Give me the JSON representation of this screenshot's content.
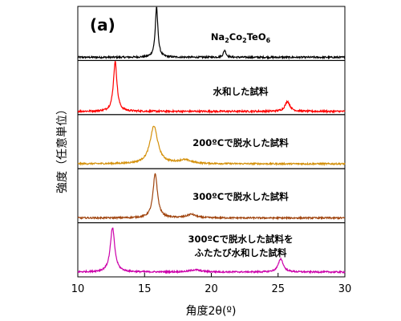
{
  "chart_data": {
    "type": "line",
    "panel_label": "(a)",
    "xlabel": "角度2θ(º)",
    "ylabel": "強度（任意単位）",
    "xlim": [
      10,
      30
    ],
    "x_ticks": [
      10,
      15,
      20,
      25,
      30
    ],
    "grid": false,
    "series": [
      {
        "name": "Na2Co2TeO6",
        "label_parts": [
          {
            "text": "Na",
            "sub": false
          },
          {
            "text": "2",
            "sub": true
          },
          {
            "text": "Co",
            "sub": false
          },
          {
            "text": "2",
            "sub": true
          },
          {
            "text": "TeO",
            "sub": false
          },
          {
            "text": "6",
            "sub": true
          }
        ],
        "color": "#000000",
        "peaks": [
          {
            "x": 15.9,
            "height": 1.0,
            "width": 0.12
          },
          {
            "x": 21.0,
            "height": 0.14,
            "width": 0.12
          }
        ]
      },
      {
        "name": "水和した試料",
        "color": "#ff0000",
        "peaks": [
          {
            "x": 12.8,
            "height": 1.0,
            "width": 0.16
          },
          {
            "x": 25.7,
            "height": 0.2,
            "width": 0.22
          }
        ]
      },
      {
        "name": "200ºCで脱水した試料",
        "color": "#d4900a",
        "peaks": [
          {
            "x": 15.7,
            "height": 0.85,
            "width": 0.35
          },
          {
            "x": 18.0,
            "height": 0.08,
            "width": 0.6
          }
        ]
      },
      {
        "name": "300ºCで脱水した試料",
        "color": "#a0440e",
        "peaks": [
          {
            "x": 15.8,
            "height": 1.0,
            "width": 0.2
          },
          {
            "x": 18.5,
            "height": 0.08,
            "width": 0.4
          }
        ]
      },
      {
        "name": "300ºCで脱水した試料をふたたび水和した試料",
        "label_lines": [
          "300ºCで脱水した試料を",
          "ふたたび水和した試料"
        ],
        "color": "#cc00aa",
        "peaks": [
          {
            "x": 12.6,
            "height": 1.0,
            "width": 0.2
          },
          {
            "x": 25.2,
            "height": 0.3,
            "width": 0.22
          },
          {
            "x": 18.8,
            "height": 0.05,
            "width": 0.5
          }
        ]
      }
    ]
  }
}
